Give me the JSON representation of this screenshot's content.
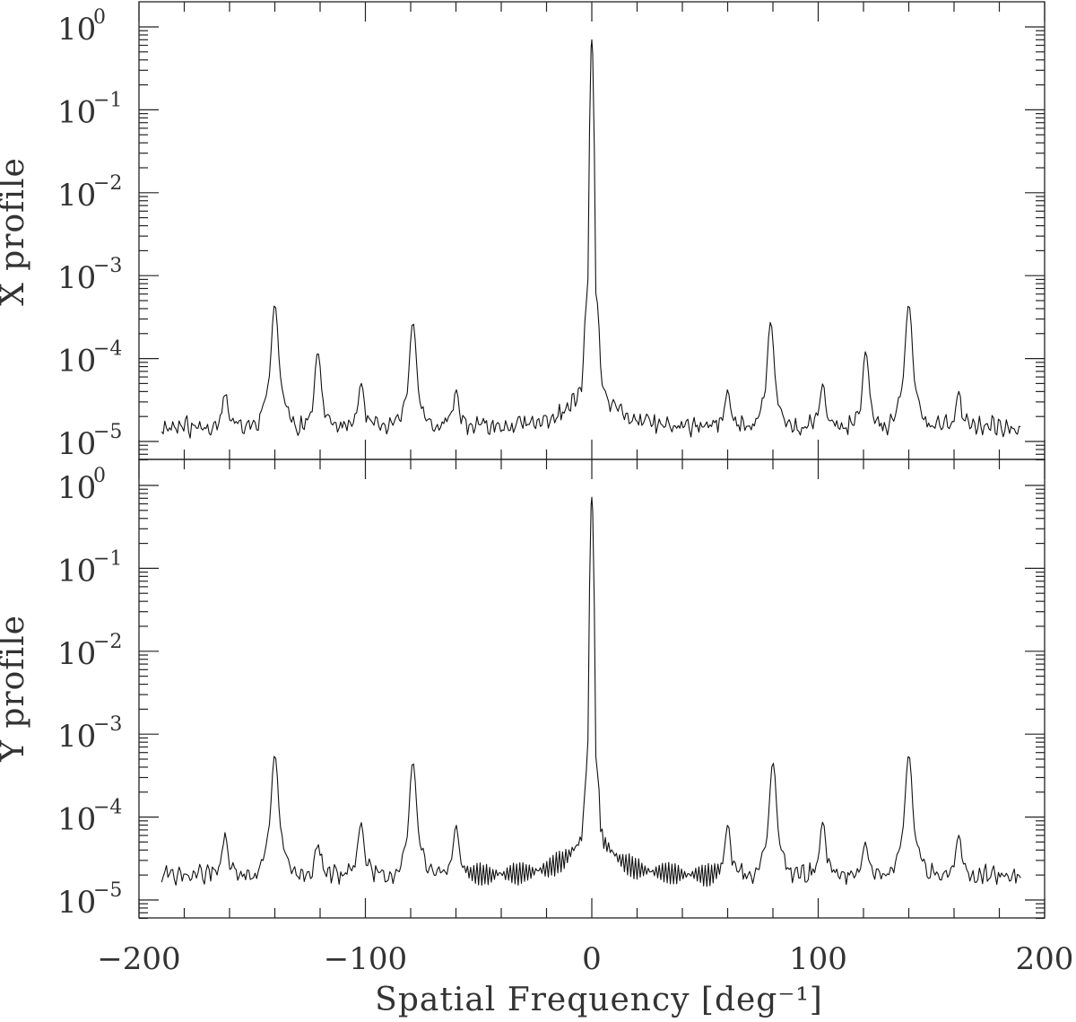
{
  "chart_data": [
    {
      "type": "line",
      "panel": "top",
      "title": "",
      "ylabel": "X profile",
      "xlabel": "",
      "yscale": "log",
      "ylim": [
        6e-06,
        2.0
      ],
      "xlim": [
        -200,
        200
      ],
      "yticks": [
        {
          "base": "10",
          "exp": "0"
        },
        {
          "base": "10",
          "exp": "−1"
        },
        {
          "base": "10",
          "exp": "−2"
        },
        {
          "base": "10",
          "exp": "−3"
        },
        {
          "base": "10",
          "exp": "−4"
        },
        {
          "base": "10",
          "exp": "−5"
        }
      ],
      "ytick_values": [
        1,
        0.1,
        0.01,
        0.001,
        0.0001,
        1e-05
      ],
      "xtick_values": [
        -200,
        -100,
        0,
        100,
        200
      ],
      "floor": 1.5e-05,
      "center_peak": 0.7,
      "center_shoulders": 0.00042,
      "peaks": [
        {
          "x": -162,
          "y": 3.4e-05
        },
        {
          "x": -140,
          "y": 0.0004
        },
        {
          "x": -121,
          "y": 0.000108
        },
        {
          "x": -102,
          "y": 4.4e-05
        },
        {
          "x": -79,
          "y": 0.000245
        },
        {
          "x": -60,
          "y": 3.6e-05
        },
        {
          "x": 60,
          "y": 3.6e-05
        },
        {
          "x": 79,
          "y": 0.000245
        },
        {
          "x": 102,
          "y": 4.4e-05
        },
        {
          "x": 121,
          "y": 0.000108
        },
        {
          "x": 140,
          "y": 0.0004
        },
        {
          "x": 162,
          "y": 3.4e-05
        }
      ]
    },
    {
      "type": "line",
      "panel": "bottom",
      "title": "",
      "ylabel": "Y profile",
      "xlabel": "Spatial Frequency [deg⁻¹]",
      "yscale": "log",
      "ylim": [
        6e-06,
        2.0
      ],
      "xlim": [
        -200,
        200
      ],
      "yticks": [
        {
          "base": "10",
          "exp": "0"
        },
        {
          "base": "10",
          "exp": "−1"
        },
        {
          "base": "10",
          "exp": "−2"
        },
        {
          "base": "10",
          "exp": "−3"
        },
        {
          "base": "10",
          "exp": "−4"
        },
        {
          "base": "10",
          "exp": "−5"
        }
      ],
      "ytick_values": [
        1,
        0.1,
        0.01,
        0.001,
        0.0001,
        1e-05
      ],
      "xtick_values": [
        -200,
        -100,
        0,
        100,
        200
      ],
      "xtick_labels": [
        "−200",
        "−100",
        "0",
        "100",
        "200"
      ],
      "floor": 2e-05,
      "center_peak": 0.72,
      "center_shoulders": 0.00028,
      "peaks": [
        {
          "x": -162,
          "y": 5.5e-05
        },
        {
          "x": -140,
          "y": 0.0005
        },
        {
          "x": -121,
          "y": 4.4e-05
        },
        {
          "x": -102,
          "y": 7.6e-05
        },
        {
          "x": -79,
          "y": 0.00041
        },
        {
          "x": -60,
          "y": 7e-05
        },
        {
          "x": 60,
          "y": 7e-05
        },
        {
          "x": 80,
          "y": 0.00041
        },
        {
          "x": 102,
          "y": 7.6e-05
        },
        {
          "x": 121,
          "y": 4.4e-05
        },
        {
          "x": 140,
          "y": 0.0005
        },
        {
          "x": 162,
          "y": 5.5e-05
        }
      ]
    }
  ]
}
